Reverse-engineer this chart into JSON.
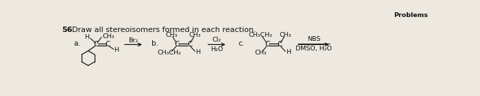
{
  "bg_color": "#ede9e1",
  "text_color": "#111111",
  "title_num": "56",
  "title_text": "Draw all stereoisomers formed in each reaction.",
  "top_right": "Problems",
  "label_a": "a.",
  "label_b": "b.",
  "label_c": "c.",
  "reagent_a": "Br₂",
  "reagent_b_top": "Cl₂",
  "reagent_b_bot": "H₂O",
  "reagent_c_top": "NBS",
  "reagent_c_bot": "DMSO, H₂O",
  "fs_title": 8.0,
  "fs_body": 7.5,
  "fs_small": 6.8
}
